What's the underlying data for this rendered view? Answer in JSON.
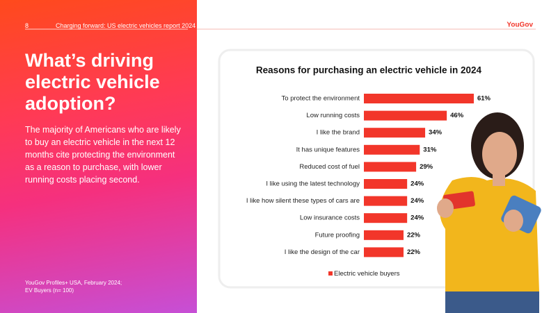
{
  "header": {
    "page_number": "8",
    "report_title": "Charging forward: US electric vehicles report 2024",
    "brand": "YouGov"
  },
  "left_panel": {
    "heading": "What’s driving electric vehicle adoption?",
    "body": "The majority of Americans who are likely to buy an electric vehicle in the next 12 months cite protecting the environment as a reason to purchase, with lower running costs placing second.",
    "source": [
      "YouGov Profiles+ USA, February 2024;",
      "EV Buyers (n= 100)"
    ]
  },
  "chart_data": {
    "type": "bar",
    "orientation": "horizontal",
    "title": "Reasons for purchasing an electric vehicle in 2024",
    "categories": [
      "To protect the environment",
      "Low running costs",
      "I like the brand",
      "It has unique features",
      "Reduced cost of fuel",
      "I like using the latest technology",
      "I like how silent these types of cars are",
      "Low insurance costs",
      "Future proofing",
      "I like the design of the car"
    ],
    "series": [
      {
        "name": "Electric vehicle buyers",
        "color": "#f2362a",
        "values": [
          61,
          46,
          34,
          31,
          29,
          24,
          24,
          24,
          22,
          22
        ],
        "value_labels": [
          "61%",
          "46%",
          "34%",
          "31%",
          "29%",
          "24%",
          "24%",
          "24%",
          "22%",
          "22%"
        ]
      }
    ],
    "xlim": [
      0,
      100
    ],
    "legend": "bottom"
  }
}
